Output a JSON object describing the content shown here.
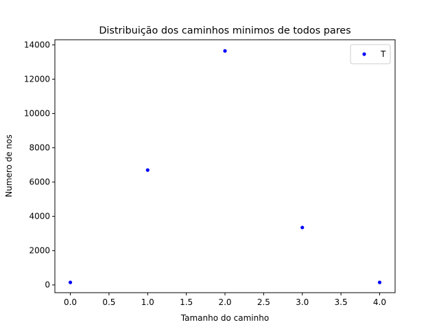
{
  "chart_data": {
    "type": "scatter",
    "title": "Distribuição dos caminhos minimos de todos pares",
    "xlabel": "Tamanho do caminho",
    "ylabel": "Numero de nos",
    "xlim": [
      -0.2,
      4.2
    ],
    "ylim": [
      -450,
      14300
    ],
    "xticks": [
      0.0,
      0.5,
      1.0,
      1.5,
      2.0,
      2.5,
      3.0,
      3.5,
      4.0
    ],
    "xtick_labels": [
      "0.0",
      "0.5",
      "1.0",
      "1.5",
      "2.0",
      "2.5",
      "3.0",
      "3.5",
      "4.0"
    ],
    "yticks": [
      0,
      2000,
      4000,
      6000,
      8000,
      10000,
      12000,
      14000
    ],
    "ytick_labels": [
      "0",
      "2000",
      "4000",
      "6000",
      "8000",
      "10000",
      "12000",
      "14000"
    ],
    "grid": false,
    "legend_position": "top-right",
    "series": [
      {
        "name": "T",
        "color": "#0000ff",
        "marker": "dot",
        "x": [
          0,
          1,
          2,
          3,
          4
        ],
        "y": [
          150,
          6700,
          13650,
          3350,
          150
        ]
      }
    ]
  }
}
